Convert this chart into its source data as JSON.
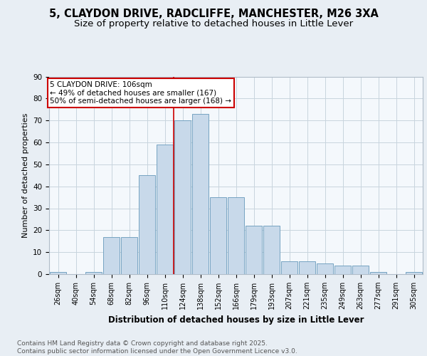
{
  "title_line1": "5, CLAYDON DRIVE, RADCLIFFE, MANCHESTER, M26 3XA",
  "title_line2": "Size of property relative to detached houses in Little Lever",
  "xlabel": "Distribution of detached houses by size in Little Lever",
  "ylabel": "Number of detached properties",
  "categories": [
    "26sqm",
    "40sqm",
    "54sqm",
    "68sqm",
    "82sqm",
    "96sqm",
    "110sqm",
    "124sqm",
    "138sqm",
    "152sqm",
    "166sqm",
    "179sqm",
    "193sqm",
    "207sqm",
    "221sqm",
    "235sqm",
    "249sqm",
    "263sqm",
    "277sqm",
    "291sqm",
    "305sqm"
  ],
  "values": [
    1,
    0,
    1,
    17,
    17,
    45,
    59,
    70,
    73,
    35,
    35,
    22,
    22,
    6,
    6,
    5,
    4,
    4,
    1,
    0,
    1
  ],
  "bar_color": "#c8d9ea",
  "bar_edgecolor": "#6699bb",
  "vline_color": "#cc0000",
  "vline_x": 6.5,
  "annotation_text": "5 CLAYDON DRIVE: 106sqm\n← 49% of detached houses are smaller (167)\n50% of semi-detached houses are larger (168) →",
  "annotation_box_facecolor": "#ffffff",
  "annotation_box_edgecolor": "#cc0000",
  "ylim": [
    0,
    90
  ],
  "yticks": [
    0,
    10,
    20,
    30,
    40,
    50,
    60,
    70,
    80,
    90
  ],
  "background_color": "#e8eef4",
  "plot_background": "#f4f8fc",
  "footer_text": "Contains HM Land Registry data © Crown copyright and database right 2025.\nContains public sector information licensed under the Open Government Licence v3.0.",
  "title_fontsize": 10.5,
  "subtitle_fontsize": 9.5,
  "xlabel_fontsize": 8.5,
  "ylabel_fontsize": 8,
  "tick_fontsize": 7,
  "annotation_fontsize": 7.5,
  "footer_fontsize": 6.5
}
